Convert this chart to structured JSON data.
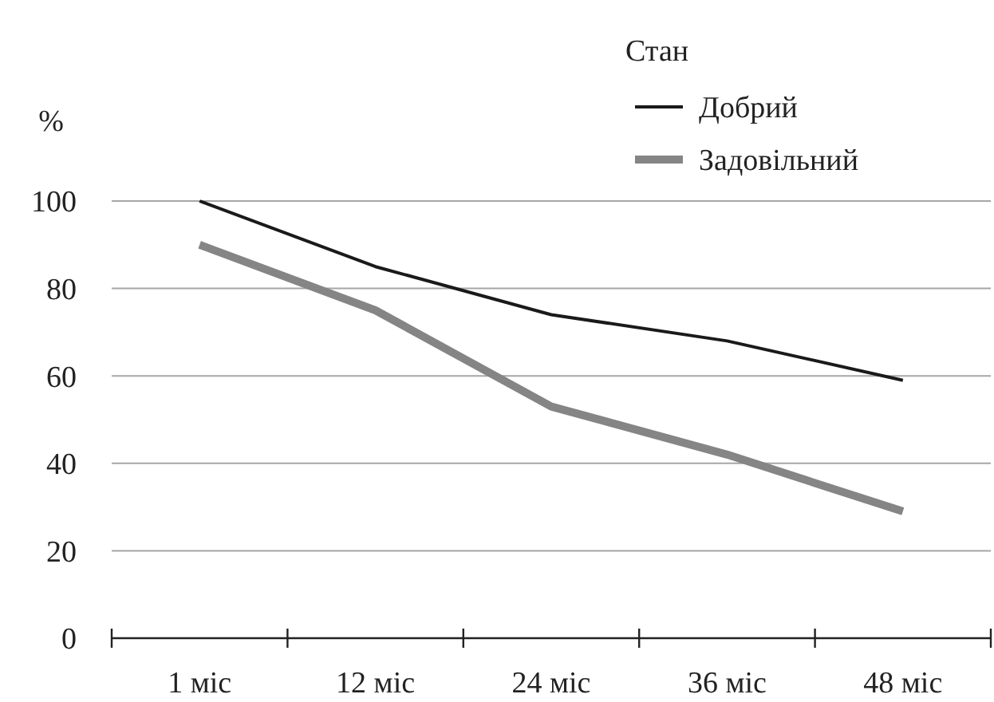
{
  "chart_data": {
    "type": "line",
    "ylabel": "%",
    "legend_title": "Стан",
    "categories": [
      "1 міс",
      "12 міс",
      "24 міс",
      "36 міс",
      "48 міс"
    ],
    "series": [
      {
        "name": "Добрий",
        "color": "#1a1a1a",
        "values": [
          100,
          85,
          74,
          68,
          59
        ]
      },
      {
        "name": "Задовільний",
        "color": "#858585",
        "values": [
          90,
          75,
          53,
          42,
          29
        ]
      }
    ],
    "ylim": [
      0,
      100
    ],
    "yticks": [
      0,
      20,
      40,
      60,
      80,
      100
    ],
    "grid": "y",
    "legend": "top right",
    "marker": "none",
    "line_style": "solid"
  }
}
